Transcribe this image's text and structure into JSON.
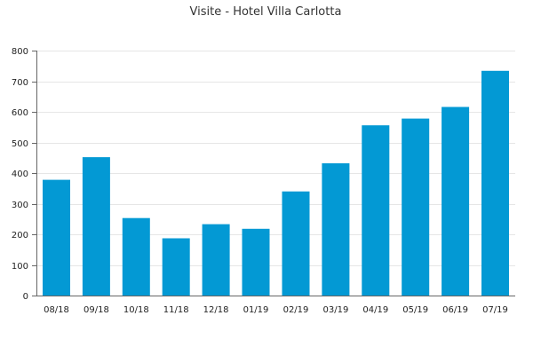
{
  "chart_data": {
    "type": "bar",
    "title": "Visite - Hotel Villa Carlotta",
    "xlabel": "",
    "ylabel": "",
    "categories": [
      "08/18",
      "09/18",
      "10/18",
      "11/18",
      "12/18",
      "01/19",
      "02/19",
      "03/19",
      "04/19",
      "05/19",
      "06/19",
      "07/19"
    ],
    "values": [
      378,
      452,
      253,
      187,
      233,
      218,
      340,
      432,
      556,
      578,
      616,
      734
    ],
    "ylim": [
      0,
      800
    ],
    "yticks": [
      0,
      100,
      200,
      300,
      400,
      500,
      600,
      700,
      800
    ],
    "grid": true,
    "legend": "none",
    "colors": {
      "bar": "#0399d4"
    }
  }
}
